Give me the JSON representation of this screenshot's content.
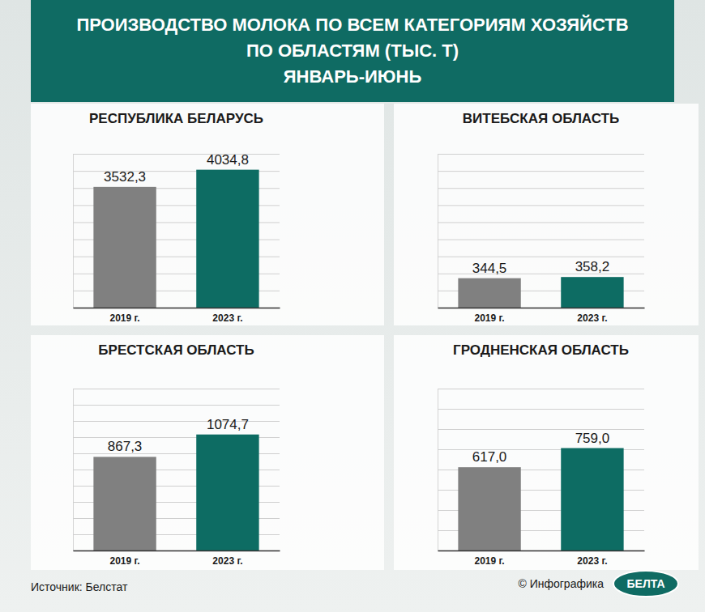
{
  "header": {
    "title_lines": [
      "ПРОИЗВОДСТВО МОЛОКА ПО ВСЕМ КАТЕГОРИЯМ ХОЗЯЙСТВ",
      "ПО ОБЛАСТЯМ (ТЫС. Т)",
      "ЯНВАРЬ-ИЮНЬ"
    ]
  },
  "chart_data": [
    {
      "type": "bar",
      "title": "РЕСПУБЛИКА БЕЛАРУСЬ",
      "categories": [
        "2019 г.",
        "2023 г."
      ],
      "values": [
        3532.3,
        4034.8
      ],
      "value_labels": [
        "3532,3",
        "4034,8"
      ],
      "colors": [
        "#808080",
        "#0d6c63"
      ],
      "ylim": [
        0,
        4500
      ],
      "yticks": [
        0,
        500,
        1000,
        1500,
        2000,
        2500,
        3000,
        3500,
        4000,
        4500
      ],
      "grid": true,
      "data_labels": true,
      "tick_labels": "x"
    },
    {
      "type": "bar",
      "title": "ВИТЕБСКАЯ ОБЛАСТЬ",
      "categories": [
        "2019 г.",
        "2023 г."
      ],
      "values": [
        344.5,
        358.2
      ],
      "value_labels": [
        "344,5",
        "358,2"
      ],
      "colors": [
        "#808080",
        "#0d6c63"
      ],
      "ylim": [
        0,
        1800
      ],
      "yticks": [
        0,
        200,
        400,
        600,
        800,
        1000,
        1200,
        1400,
        1600,
        1800
      ],
      "grid": true,
      "data_labels": true,
      "tick_labels": "x"
    },
    {
      "type": "bar",
      "title": "БРЕСТСКАЯ ОБЛАСТЬ",
      "categories": [
        "2019 г.",
        "2023 г."
      ],
      "values": [
        867.3,
        1074.7
      ],
      "value_labels": [
        "867,3",
        "1074,7"
      ],
      "colors": [
        "#808080",
        "#0d6c63"
      ],
      "ylim": [
        0,
        1500
      ],
      "yticks": [
        0,
        150,
        300,
        450,
        600,
        750,
        900,
        1050,
        1200,
        1350,
        1500
      ],
      "grid": true,
      "data_labels": true,
      "tick_labels": "x"
    },
    {
      "type": "bar",
      "title": "ГРОДНЕНСКАЯ ОБЛАСТЬ",
      "categories": [
        "2019 г.",
        "2023 г."
      ],
      "values": [
        617.0,
        759.0
      ],
      "value_labels": [
        "617,0",
        "759,0"
      ],
      "colors": [
        "#808080",
        "#0d6c63"
      ],
      "ylim": [
        0,
        1200
      ],
      "yticks": [
        0,
        150,
        300,
        450,
        600,
        750,
        900,
        1050,
        1200
      ],
      "grid": true,
      "data_labels": true,
      "tick_labels": "x"
    }
  ],
  "footer": {
    "source": "Источник: Белстат",
    "credit": "© Инфографика",
    "logo": "БЕЛТА"
  }
}
